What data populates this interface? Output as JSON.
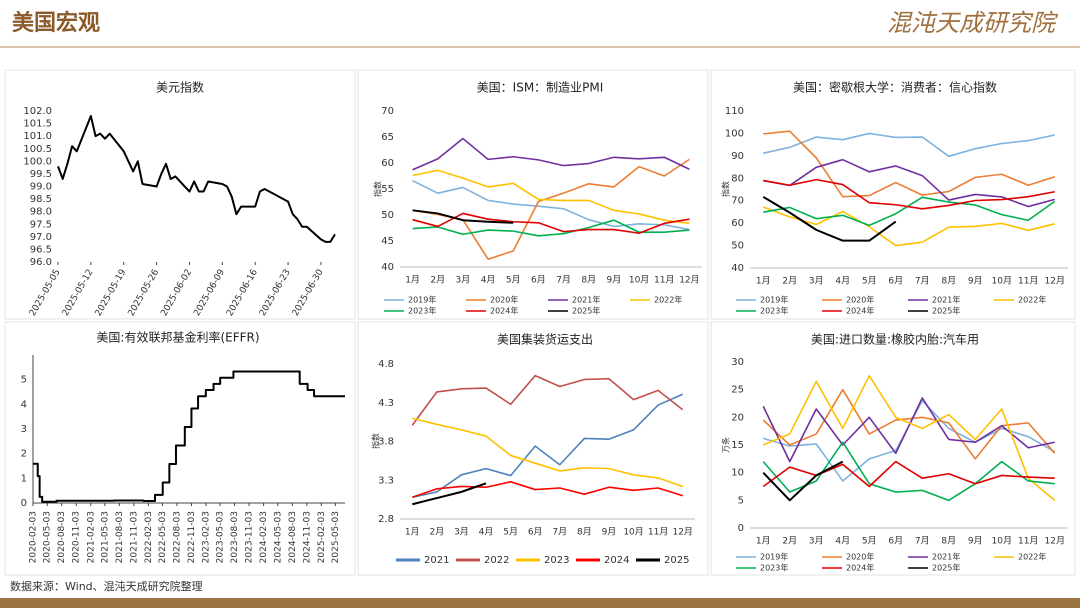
{
  "header": {
    "title": "美国宏观",
    "logo": "混沌天成研究院"
  },
  "footer": {
    "source": "数据来源：Wind、混沌天成研究院整理"
  },
  "chart_data": [
    {
      "type": "line",
      "title": "美元指数",
      "color": "#000000",
      "x": [
        "2025-05-05",
        "2025-05-06",
        "2025-05-07",
        "2025-05-08",
        "2025-05-09",
        "2025-05-12",
        "2025-05-13",
        "2025-05-14",
        "2025-05-15",
        "2025-05-16",
        "2025-05-19",
        "2025-05-20",
        "2025-05-21",
        "2025-05-22",
        "2025-05-23",
        "2025-05-26",
        "2025-05-27",
        "2025-05-28",
        "2025-05-29",
        "2025-05-30",
        "2025-06-02",
        "2025-06-03",
        "2025-06-04",
        "2025-06-05",
        "2025-06-06",
        "2025-06-09",
        "2025-06-10",
        "2025-06-11",
        "2025-06-12",
        "2025-06-13",
        "2025-06-16",
        "2025-06-17",
        "2025-06-18",
        "2025-06-19",
        "2025-06-20",
        "2025-06-23",
        "2025-06-24",
        "2025-06-25",
        "2025-06-26",
        "2025-06-27",
        "2025-06-30",
        "2025-07-01",
        "2025-07-02",
        "2025-07-03"
      ],
      "values": [
        99.8,
        99.3,
        99.9,
        100.6,
        100.4,
        101.8,
        101.0,
        101.1,
        100.9,
        101.1,
        100.4,
        100.0,
        99.6,
        100.0,
        99.1,
        99.0,
        99.5,
        99.9,
        99.3,
        99.4,
        98.8,
        99.2,
        98.8,
        98.8,
        99.2,
        99.1,
        99.0,
        98.6,
        97.9,
        98.2,
        98.2,
        98.8,
        98.9,
        98.8,
        98.7,
        98.4,
        97.9,
        97.7,
        97.4,
        97.4,
        96.9,
        96.8,
        96.8,
        97.1
      ],
      "xlim": [
        "2025-05-05",
        "2025-07-03"
      ],
      "xticks": [
        "2025-05-05",
        "2025-05-12",
        "2025-05-19",
        "2025-05-26",
        "2025-06-02",
        "2025-06-09",
        "2025-06-16",
        "2025-06-23",
        "2025-06-30"
      ],
      "ylim": [
        96,
        102
      ],
      "yticks": [
        {
          "value": 96,
          "label": "96.0"
        },
        96.5,
        {
          "value": 97,
          "label": "97.0"
        },
        97.5,
        {
          "value": 98,
          "label": "98.0"
        },
        98.5,
        {
          "value": 99,
          "label": "99.0"
        },
        99.5,
        {
          "value": 100,
          "label": "100.0"
        },
        100.5,
        {
          "value": 101,
          "label": "101.0"
        },
        101.5,
        {
          "value": 102,
          "label": "102.0"
        }
      ]
    },
    {
      "type": "line",
      "title": "美国：ISM：制造业PMI",
      "ylabel": "指数",
      "legend": "bottom",
      "categories": [
        "1月",
        "2月",
        "3月",
        "4月",
        "5月",
        "6月",
        "7月",
        "8月",
        "9月",
        "10月",
        "11月",
        "12月"
      ],
      "ylim": [
        40,
        70
      ],
      "yticks": [
        40,
        45,
        50,
        55,
        60,
        65,
        70
      ],
      "series": [
        {
          "name": "2019年",
          "color": "#7fb2de",
          "values": [
            56.6,
            54.2,
            55.3,
            52.8,
            52.1,
            51.7,
            51.2,
            49.1,
            47.8,
            48.3,
            48.1,
            47.2
          ]
        },
        {
          "name": "2020年",
          "color": "#ed7d31",
          "values": [
            50.9,
            50.1,
            49.1,
            41.5,
            43.1,
            52.6,
            54.2,
            56.0,
            55.4,
            59.3,
            57.5,
            60.7
          ]
        },
        {
          "name": "2021年",
          "color": "#7030a0",
          "values": [
            58.7,
            60.8,
            64.7,
            60.7,
            61.2,
            60.6,
            59.5,
            59.9,
            61.1,
            60.8,
            61.1,
            58.8
          ]
        },
        {
          "name": "2022年",
          "color": "#ffc000",
          "values": [
            57.6,
            58.6,
            57.1,
            55.4,
            56.1,
            53.0,
            52.8,
            52.8,
            50.9,
            50.2,
            49.0,
            48.4
          ]
        },
        {
          "name": "2023年",
          "color": "#00b050",
          "values": [
            47.4,
            47.7,
            46.3,
            47.1,
            46.9,
            46.0,
            46.4,
            47.6,
            49.0,
            46.7,
            46.7,
            47.1
          ]
        },
        {
          "name": "2024年",
          "color": "#e00000",
          "values": [
            49.1,
            47.8,
            50.3,
            49.2,
            48.7,
            48.5,
            46.8,
            47.2,
            47.2,
            46.5,
            48.4,
            49.2
          ]
        },
        {
          "name": "2025年",
          "color": "#000000",
          "values": [
            50.9,
            50.3,
            49.0,
            48.7,
            48.5,
            null,
            null,
            null,
            null,
            null,
            null,
            null
          ]
        }
      ]
    },
    {
      "type": "line",
      "title": "美国：密歇根大学：消费者：信心指数",
      "ylabel": "指数",
      "legend": "bottom",
      "categories": [
        "1月",
        "2月",
        "3月",
        "4月",
        "5月",
        "6月",
        "7月",
        "8月",
        "9月",
        "10月",
        "11月",
        "12月"
      ],
      "ylim": [
        40,
        110
      ],
      "yticks": [
        40,
        50,
        60,
        70,
        80,
        90,
        100,
        110
      ],
      "series": [
        {
          "name": "2019年",
          "color": "#7fb2de",
          "values": [
            91.2,
            93.8,
            98.4,
            97.2,
            100.0,
            98.2,
            98.4,
            89.8,
            93.2,
            95.5,
            96.8,
            99.3
          ]
        },
        {
          "name": "2020年",
          "color": "#ed7d31",
          "values": [
            99.8,
            101.0,
            89.1,
            71.8,
            72.3,
            78.1,
            72.5,
            74.1,
            80.4,
            81.8,
            76.9,
            80.7
          ]
        },
        {
          "name": "2021年",
          "color": "#7030a0",
          "values": [
            79.0,
            76.8,
            84.9,
            88.3,
            82.9,
            85.5,
            81.2,
            70.3,
            72.8,
            71.7,
            67.4,
            70.6
          ]
        },
        {
          "name": "2022年",
          "color": "#ffc000",
          "values": [
            67.2,
            62.8,
            59.4,
            65.2,
            58.4,
            50.0,
            51.5,
            58.2,
            58.6,
            59.9,
            56.8,
            59.7
          ]
        },
        {
          "name": "2023年",
          "color": "#00b050",
          "values": [
            64.9,
            67.0,
            62.0,
            63.5,
            59.0,
            64.2,
            71.5,
            69.4,
            68.1,
            63.8,
            61.3,
            69.7
          ]
        },
        {
          "name": "2024年",
          "color": "#e00000",
          "values": [
            79.0,
            76.9,
            79.4,
            77.2,
            69.1,
            68.2,
            66.4,
            67.9,
            70.1,
            70.5,
            71.8,
            74.0
          ]
        },
        {
          "name": "2025年",
          "color": "#000000",
          "values": [
            71.7,
            64.7,
            57.0,
            52.2,
            52.2,
            60.7,
            null,
            null,
            null,
            null,
            null,
            null
          ]
        }
      ]
    },
    {
      "type": "line",
      "title": "美国:有效联邦基金利率(EFFR)",
      "color": "#000000",
      "step": true,
      "x": [
        "2020-02-03",
        "2020-03-04",
        "2020-03-16",
        "2020-04-01",
        "2020-07-01",
        "2021-01-04",
        "2021-07-01",
        "2022-01-03",
        "2022-03-17",
        "2022-05-05",
        "2022-06-16",
        "2022-07-28",
        "2022-09-22",
        "2022-11-03",
        "2022-12-15",
        "2023-02-02",
        "2023-03-23",
        "2023-05-04",
        "2023-07-27",
        "2024-09-19",
        "2024-11-08",
        "2024-12-19",
        "2025-07-01"
      ],
      "values": [
        1.59,
        1.09,
        0.25,
        0.05,
        0.09,
        0.09,
        0.1,
        0.08,
        0.33,
        0.83,
        1.58,
        2.33,
        3.08,
        3.83,
        4.33,
        4.58,
        4.83,
        5.08,
        5.33,
        4.83,
        4.58,
        4.33,
        4.33
      ],
      "xlim": [
        "2020-02-03",
        "2025-07-03"
      ],
      "xticks": [
        "2020-02-03",
        "2020-05-03",
        "2020-08-03",
        "2020-11-03",
        "2021-02-03",
        "2021-05-03",
        "2021-08-03",
        "2021-11-03",
        "2022-02-03",
        "2022-05-03",
        "2022-08-03",
        "2022-11-03",
        "2023-02-03",
        "2023-05-03",
        "2023-08-03",
        "2023-11-03",
        "2024-02-03",
        "2024-05-03",
        "2024-08-03",
        "2024-11-03",
        "2025-02-03",
        "2025-05-03"
      ],
      "ylim": [
        0,
        6
      ],
      "yticks": [
        0,
        1,
        2,
        3,
        4,
        5
      ]
    },
    {
      "type": "line",
      "title": "美国集装货运支出",
      "ylabel": "指数",
      "legend": "bottom",
      "categories": [
        "1月",
        "2月",
        "3月",
        "4月",
        "5月",
        "6月",
        "7月",
        "8月",
        "9月",
        "10月",
        "11月",
        "12月"
      ],
      "ylim": [
        2.8,
        4.8
      ],
      "yticks": [
        2.8,
        3.3,
        3.8,
        4.3,
        4.8
      ],
      "series": [
        {
          "name": "2021",
          "color": "#4f81bd",
          "values": [
            3.08,
            3.15,
            3.37,
            3.45,
            3.36,
            3.74,
            3.5,
            3.84,
            3.83,
            3.95,
            4.27,
            4.41
          ]
        },
        {
          "name": "2022",
          "color": "#c0504d",
          "values": [
            4.01,
            4.44,
            4.48,
            4.49,
            4.28,
            4.65,
            4.51,
            4.6,
            4.61,
            4.34,
            4.46,
            4.21
          ]
        },
        {
          "name": "2023",
          "color": "#ffc000",
          "values": [
            4.1,
            4.02,
            3.95,
            3.87,
            3.62,
            3.52,
            3.42,
            3.46,
            3.45,
            3.37,
            3.33,
            3.22
          ]
        },
        {
          "name": "2024",
          "color": "#ff0000",
          "values": [
            3.08,
            3.19,
            3.22,
            3.21,
            3.28,
            3.18,
            3.2,
            3.12,
            3.21,
            3.17,
            3.2,
            3.1
          ]
        },
        {
          "name": "2025",
          "color": "#000000",
          "values": [
            2.99,
            3.07,
            3.15,
            3.26,
            null,
            null,
            null,
            null,
            null,
            null,
            null,
            null
          ]
        }
      ]
    },
    {
      "type": "line",
      "title": "美国:进口数量:橡胶内胎:汽车用",
      "ylabel": "万条",
      "legend": "bottom",
      "categories": [
        "1月",
        "2月",
        "3月",
        "4月",
        "5月",
        "6月",
        "7月",
        "8月",
        "9月",
        "10月",
        "11月",
        "12月"
      ],
      "ylim": [
        0,
        30
      ],
      "yticks": [
        0,
        5,
        10,
        15,
        20,
        25,
        30
      ],
      "series": [
        {
          "name": "2019年",
          "color": "#7fb2de",
          "values": [
            16.2,
            14.8,
            15.2,
            8.5,
            12.5,
            14.0,
            23.0,
            18.0,
            15.5,
            18.0,
            16.5,
            13.8
          ]
        },
        {
          "name": "2020年",
          "color": "#ed7d31",
          "values": [
            19.5,
            15.0,
            17.0,
            25.0,
            17.0,
            19.5,
            20.0,
            19.0,
            12.5,
            18.5,
            19.0,
            13.5
          ]
        },
        {
          "name": "2021年",
          "color": "#7030a0",
          "values": [
            22.0,
            12.0,
            21.5,
            15.0,
            20.0,
            13.5,
            23.5,
            16.0,
            15.5,
            18.5,
            14.5,
            15.5
          ]
        },
        {
          "name": "2022年",
          "color": "#ffc000",
          "values": [
            15.0,
            17.0,
            26.5,
            18.0,
            27.5,
            20.0,
            18.0,
            20.5,
            16.0,
            21.5,
            9.0,
            5.0
          ]
        },
        {
          "name": "2023年",
          "color": "#00b050",
          "values": [
            12.0,
            6.5,
            8.5,
            15.5,
            8.0,
            6.5,
            6.8,
            5.0,
            8.0,
            12.0,
            8.5,
            8.0
          ]
        },
        {
          "name": "2024年",
          "color": "#e00000",
          "values": [
            7.5,
            11.0,
            9.5,
            11.5,
            7.5,
            12.0,
            9.0,
            9.8,
            8.0,
            9.5,
            9.2,
            9.0
          ]
        },
        {
          "name": "2025年",
          "color": "#000000",
          "values": [
            10.0,
            5.0,
            9.5,
            12.0,
            null,
            null,
            null,
            null,
            null,
            null,
            null,
            null
          ]
        }
      ]
    }
  ]
}
